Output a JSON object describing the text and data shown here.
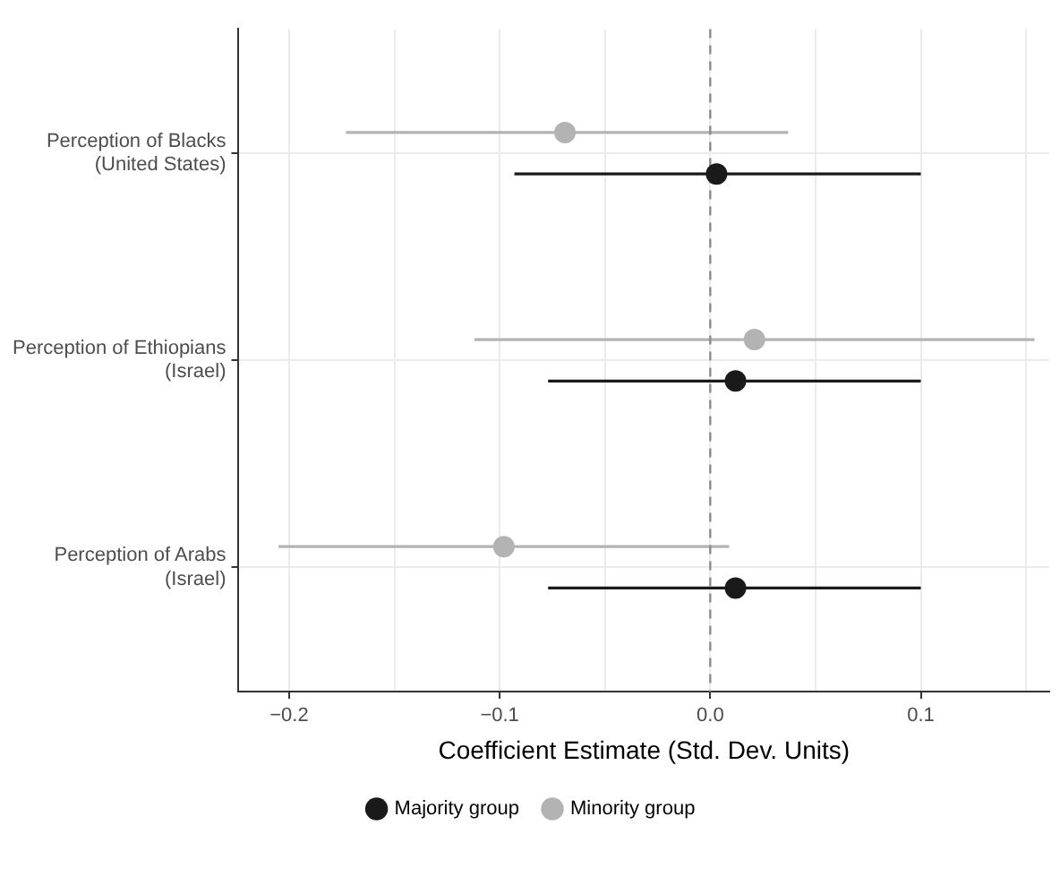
{
  "chart_data": {
    "type": "scatter",
    "orientation": "horizontal",
    "categories": [
      "Perception of Blacks\n(United States)",
      "Perception of Ethiopians\n(Israel)",
      "Perception of Arabs\n(Israel)"
    ],
    "xlabel": "Coefficient Estimate (Std. Dev. Units)",
    "xlim": [
      -0.224,
      0.161
    ],
    "xticks": [
      {
        "value": -0.2,
        "label": "−0.2"
      },
      {
        "value": -0.15,
        "label": null
      },
      {
        "value": -0.1,
        "label": "−0.1"
      },
      {
        "value": -0.05,
        "label": null
      },
      {
        "value": 0,
        "label": "0.0"
      },
      {
        "value": 0.05,
        "label": null
      },
      {
        "value": 0.1,
        "label": "0.1"
      },
      {
        "value": 0.15,
        "label": null
      }
    ],
    "grid": true,
    "legend": "bottom",
    "marker": "circle",
    "ref_lines": [
      {
        "axis": "x",
        "value": 0,
        "color": "#8c8c8c",
        "line_style": "dashed"
      }
    ],
    "series": [
      {
        "name": "Majority group",
        "color": "#1a1a1a",
        "values": [
          0.003,
          0.012,
          0.012
        ],
        "errors": [
          [
            -0.093,
            0.1
          ],
          [
            -0.077,
            0.1
          ],
          [
            -0.077,
            0.1
          ]
        ]
      },
      {
        "name": "Minority group",
        "color": "#b3b3b3",
        "values": [
          -0.069,
          0.021,
          -0.098
        ],
        "errors": [
          [
            -0.173,
            0.037
          ],
          [
            -0.112,
            0.154
          ],
          [
            -0.205,
            0.009
          ]
        ]
      }
    ]
  }
}
